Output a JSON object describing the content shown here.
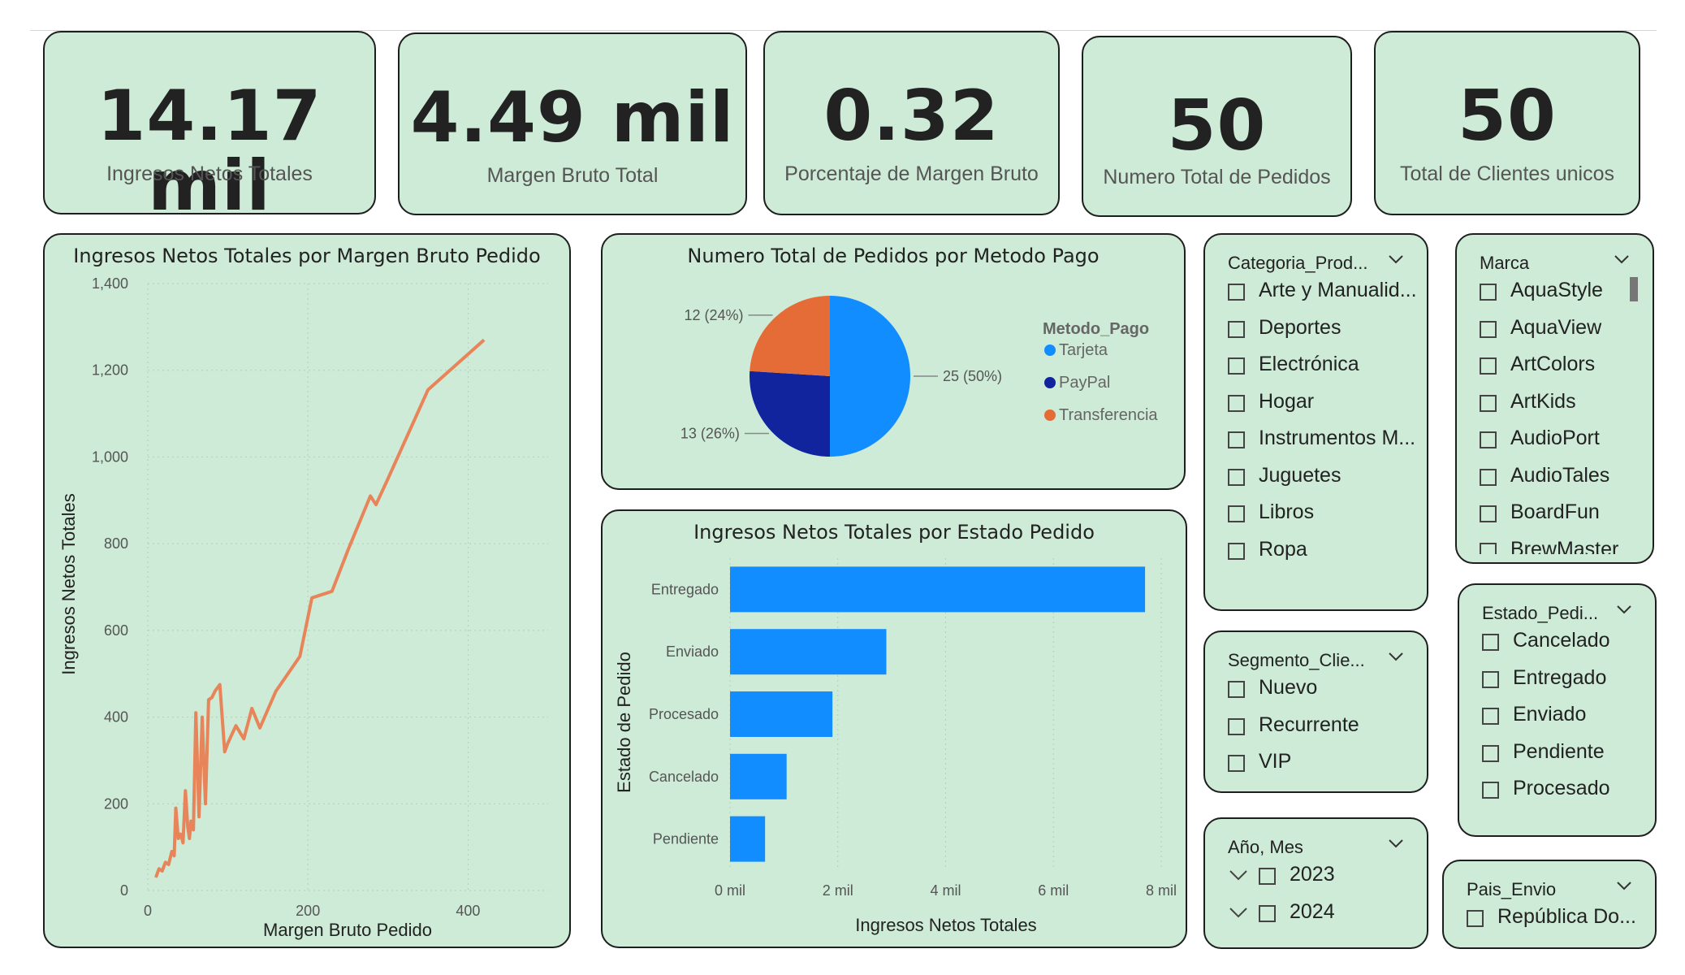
{
  "kpis": [
    {
      "value": "14.17 mil",
      "label": "Ingresos Netos Totales"
    },
    {
      "value": "4.49 mil",
      "label": "Margen Bruto Total"
    },
    {
      "value": "0.32",
      "label": "Porcentaje de Margen Bruto"
    },
    {
      "value": "50",
      "label": "Numero Total de Pedidos"
    },
    {
      "value": "50",
      "label": "Total de Clientes unicos"
    }
  ],
  "line_chart": {
    "title": "Ingresos Netos Totales por Margen Bruto Pedido",
    "xlabel": "Margen Bruto Pedido",
    "ylabel": "Ingresos Netos Totales",
    "xticks": [
      "0",
      "200",
      "400"
    ],
    "yticks": [
      "0",
      "200",
      "400",
      "600",
      "800",
      "1,000",
      "1,200",
      "1,400"
    ],
    "color": "#e8845a"
  },
  "pie_chart": {
    "title": "Numero Total de Pedidos por Metodo Pago",
    "legend_title": "Metodo_Pago",
    "labels": [
      "25 (50%)",
      "13 (26%)",
      "12 (24%)"
    ],
    "legend": [
      {
        "name": "Tarjeta",
        "color": "#118dff"
      },
      {
        "name": "PayPal",
        "color": "#12239e"
      },
      {
        "name": "Transferencia",
        "color": "#e66c37"
      }
    ]
  },
  "bar_chart": {
    "title": "Ingresos Netos Totales por Estado Pedido",
    "xlabel": "Ingresos Netos Totales",
    "ylabel": "Estado de Pedido",
    "xticks": [
      "0 mil",
      "2 mil",
      "4 mil",
      "6 mil",
      "8 mil"
    ],
    "color": "#118dff"
  },
  "chart_data": [
    {
      "type": "line",
      "title": "Ingresos Netos Totales por Margen Bruto Pedido",
      "xlabel": "Margen Bruto Pedido",
      "ylabel": "Ingresos Netos Totales",
      "xlim": [
        0,
        500
      ],
      "ylim": [
        0,
        1400
      ],
      "x": [
        10,
        14,
        18,
        22,
        26,
        30,
        33,
        35,
        38,
        41,
        44,
        47,
        50,
        52,
        54,
        57,
        60,
        64,
        68,
        72,
        76,
        80,
        84,
        90,
        96,
        100,
        110,
        120,
        130,
        140,
        160,
        190,
        205,
        230,
        250,
        278,
        285,
        300,
        350,
        420
      ],
      "y": [
        30,
        50,
        45,
        65,
        60,
        90,
        80,
        190,
        120,
        130,
        110,
        230,
        145,
        120,
        160,
        140,
        410,
        170,
        400,
        200,
        440,
        445,
        460,
        475,
        320,
        340,
        380,
        350,
        420,
        375,
        460,
        540,
        675,
        690,
        785,
        910,
        890,
        950,
        1155,
        1270
      ]
    },
    {
      "type": "pie",
      "title": "Numero Total de Pedidos por Metodo Pago",
      "legend_title": "Metodo_Pago",
      "categories": [
        "Tarjeta",
        "PayPal",
        "Transferencia"
      ],
      "values": [
        25,
        13,
        12
      ],
      "percent": [
        50,
        26,
        24
      ]
    },
    {
      "type": "bar",
      "orientation": "horizontal",
      "title": "Ingresos Netos Totales por Estado Pedido",
      "xlabel": "Ingresos Netos Totales",
      "ylabel": "Estado de Pedido",
      "categories": [
        "Entregado",
        "Enviado",
        "Procesado",
        "Cancelado",
        "Pendiente"
      ],
      "values": [
        7700,
        2900,
        1900,
        1050,
        650
      ],
      "xlim": [
        0,
        8000
      ]
    }
  ],
  "slicers": {
    "categoria": {
      "title": "Categoria_Prod...",
      "items": [
        "Arte y Manualid...",
        "Deportes",
        "Electrónica",
        "Hogar",
        "Instrumentos M...",
        "Juguetes",
        "Libros",
        "Ropa"
      ]
    },
    "marca": {
      "title": "Marca",
      "items": [
        "AquaStyle",
        "AquaView",
        "ArtColors",
        "ArtKids",
        "AudioPort",
        "AudioTales",
        "BoardFun",
        "BrewMaster"
      ]
    },
    "segmento": {
      "title": "Segmento_Clie...",
      "items": [
        "Nuevo",
        "Recurrente",
        "VIP"
      ]
    },
    "estado": {
      "title": "Estado_Pedi...",
      "items": [
        "Cancelado",
        "Entregado",
        "Enviado",
        "Pendiente",
        "Procesado"
      ]
    },
    "anio": {
      "title": "Año, Mes",
      "items": [
        "2023",
        "2024"
      ]
    },
    "pais": {
      "title": "Pais_Envio",
      "items": [
        "República Do..."
      ]
    }
  }
}
